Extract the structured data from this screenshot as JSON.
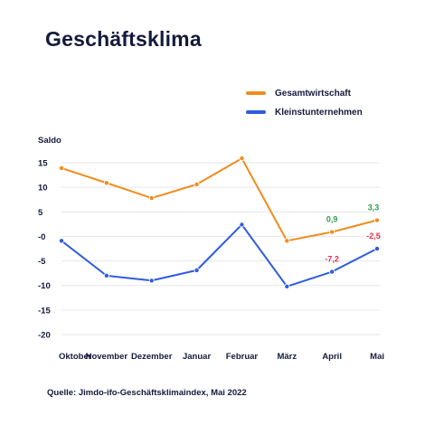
{
  "chart_data": {
    "type": "line",
    "title": "Geschäftsklima",
    "ylabel": "Saldo",
    "categories": [
      "Oktober",
      "November",
      "Dezember",
      "Januar",
      "Februar",
      "März",
      "April",
      "Mai"
    ],
    "y_ticks": [
      "15",
      "10",
      "5",
      "-0",
      "-5",
      "-10",
      "-15",
      "-20"
    ],
    "ylim": [
      -20,
      17
    ],
    "grid": true,
    "legend_position": "top-right",
    "series": [
      {
        "name": "Gesamtwirtschaft",
        "color": "#f08c1e",
        "values": [
          13.9,
          10.9,
          7.8,
          10.6,
          15.9,
          -0.9,
          0.9,
          3.3
        ],
        "labels": {
          "6": "0,9",
          "7": "3,3"
        },
        "label_color": "#2e9a4e"
      },
      {
        "name": "Kleinstunternehmen",
        "color": "#2f5be0",
        "values": [
          -0.9,
          -8.0,
          -9.0,
          -6.9,
          2.4,
          -10.2,
          -7.2,
          -2.5
        ],
        "labels": {
          "6": "-7,2",
          "7": "-2,5"
        },
        "label_color": "#e0314a"
      }
    ]
  },
  "source": "Quelle: Jimdo-ifo-Geschäftsklimaindex, Mai 2022"
}
